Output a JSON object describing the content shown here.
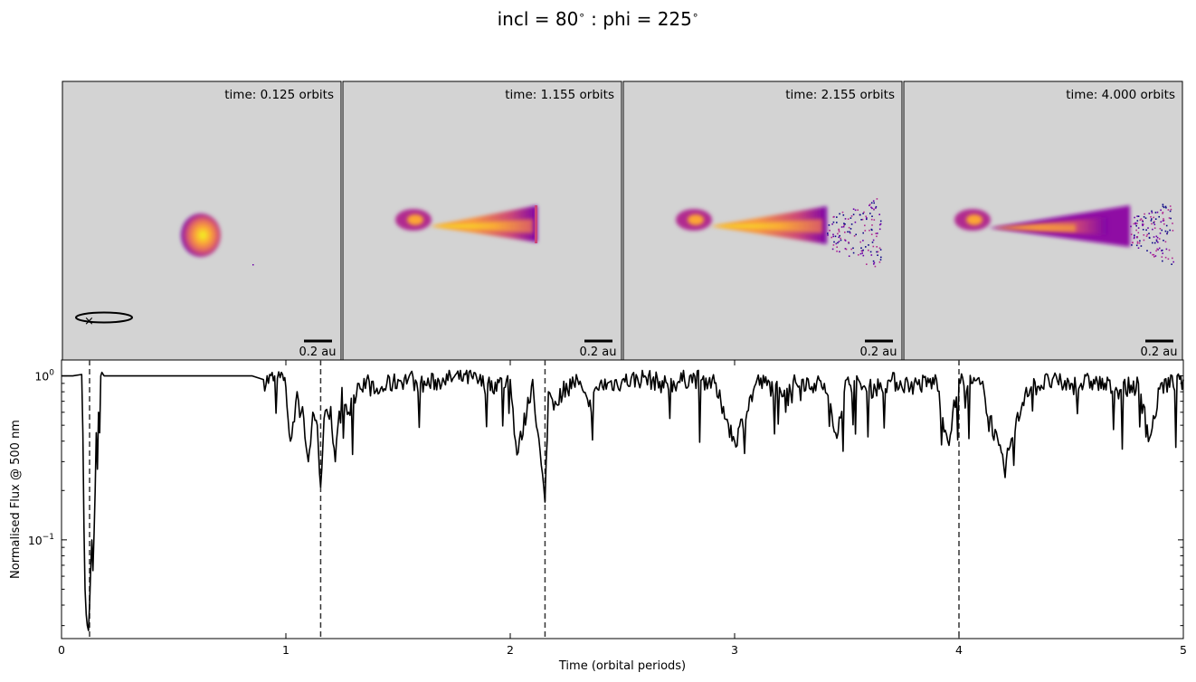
{
  "figure": {
    "title_prefix": "incl = ",
    "incl_value": "80",
    "title_mid": " : phi = ",
    "phi_value": "225",
    "degree_symbol": "∘"
  },
  "panels": [
    {
      "time_label": "time: 0.125 orbits",
      "scale_label": "0.2 au",
      "shape": "blob",
      "has_orbit_inset": true
    },
    {
      "time_label": "time: 1.155 orbits",
      "scale_label": "0.2 au",
      "shape": "tail",
      "tail_stage": 1
    },
    {
      "time_label": "time: 2.155 orbits",
      "scale_label": "0.2 au",
      "shape": "tail",
      "tail_stage": 2
    },
    {
      "time_label": "time: 4.000 orbits",
      "scale_label": "0.2 au",
      "shape": "tail",
      "tail_stage": 3
    }
  ],
  "colors": {
    "panel_background": "#d3d3d3",
    "line": "#000000",
    "dust_colormap": [
      "#0d0887",
      "#6a00a8",
      "#b12a90",
      "#e16462",
      "#fca636",
      "#f0f921"
    ]
  },
  "chart_data": {
    "type": "line",
    "xlabel": "Time (orbital periods)",
    "ylabel": "Normalised Flux @ 500 nm",
    "xlim": [
      0,
      5
    ],
    "ylim": [
      0.025,
      1.25
    ],
    "yscale": "log",
    "xticks": [
      "0",
      "1",
      "2",
      "3",
      "4",
      "5"
    ],
    "yticks": [
      "10^0",
      "10^-1"
    ],
    "grid": false,
    "vlines": [
      0.125,
      1.155,
      2.155,
      4.0
    ],
    "vline_style": "dashed",
    "series": [
      {
        "x": [
          0,
          0.05,
          0.09,
          0.095,
          0.1,
          0.105,
          0.11,
          0.115,
          0.12,
          0.125,
          0.13,
          0.135,
          0.14,
          0.145,
          0.15,
          0.155,
          0.16,
          0.165,
          0.17,
          0.175,
          0.18,
          0.19,
          0.22,
          0.3,
          0.5,
          0.7,
          0.85,
          0.9,
          0.95,
          0.98,
          1.0,
          1.02,
          1.05,
          1.08,
          1.1,
          1.12,
          1.14,
          1.155,
          1.17,
          1.2,
          1.22,
          1.25,
          1.28,
          1.32,
          1.36,
          1.4,
          1.45,
          1.5,
          1.55,
          1.6,
          1.7,
          1.8,
          1.9,
          2.0,
          2.03,
          2.1,
          2.155,
          2.17,
          2.2,
          2.25,
          2.3,
          2.35,
          2.4,
          2.5,
          2.6,
          2.7,
          2.8,
          2.9,
          2.95,
          3.0,
          3.1,
          3.2,
          3.3,
          3.4,
          3.45,
          3.5,
          3.6,
          3.7,
          3.8,
          3.9,
          3.95,
          4.0,
          4.1,
          4.2,
          4.3,
          4.4,
          4.5,
          4.6,
          4.7,
          4.8,
          4.85,
          4.9,
          5.0
        ],
        "y": [
          1.0,
          1.0,
          1.02,
          0.45,
          0.12,
          0.05,
          0.035,
          0.03,
          0.028,
          0.04,
          0.065,
          0.1,
          0.065,
          0.11,
          0.2,
          0.45,
          0.27,
          0.6,
          0.45,
          1.0,
          1.05,
          1.0,
          1.0,
          1.0,
          1.0,
          1.0,
          1.0,
          0.95,
          1.0,
          1.05,
          0.85,
          0.4,
          0.8,
          0.55,
          0.3,
          0.6,
          0.5,
          0.21,
          0.55,
          0.65,
          0.3,
          0.85,
          0.6,
          0.9,
          0.95,
          0.8,
          0.9,
          0.95,
          1.0,
          0.9,
          0.97,
          1.02,
          0.9,
          0.95,
          0.33,
          0.95,
          0.17,
          0.8,
          0.7,
          0.9,
          0.95,
          0.65,
          0.9,
          0.95,
          1.0,
          0.9,
          1.0,
          0.95,
          0.65,
          0.4,
          0.95,
          0.85,
          0.95,
          0.9,
          0.45,
          0.95,
          0.85,
          0.95,
          0.9,
          0.95,
          0.4,
          0.95,
          0.9,
          0.28,
          0.85,
          0.95,
          0.9,
          0.95,
          0.85,
          0.9,
          0.42,
          0.9,
          0.95
        ]
      }
    ]
  }
}
